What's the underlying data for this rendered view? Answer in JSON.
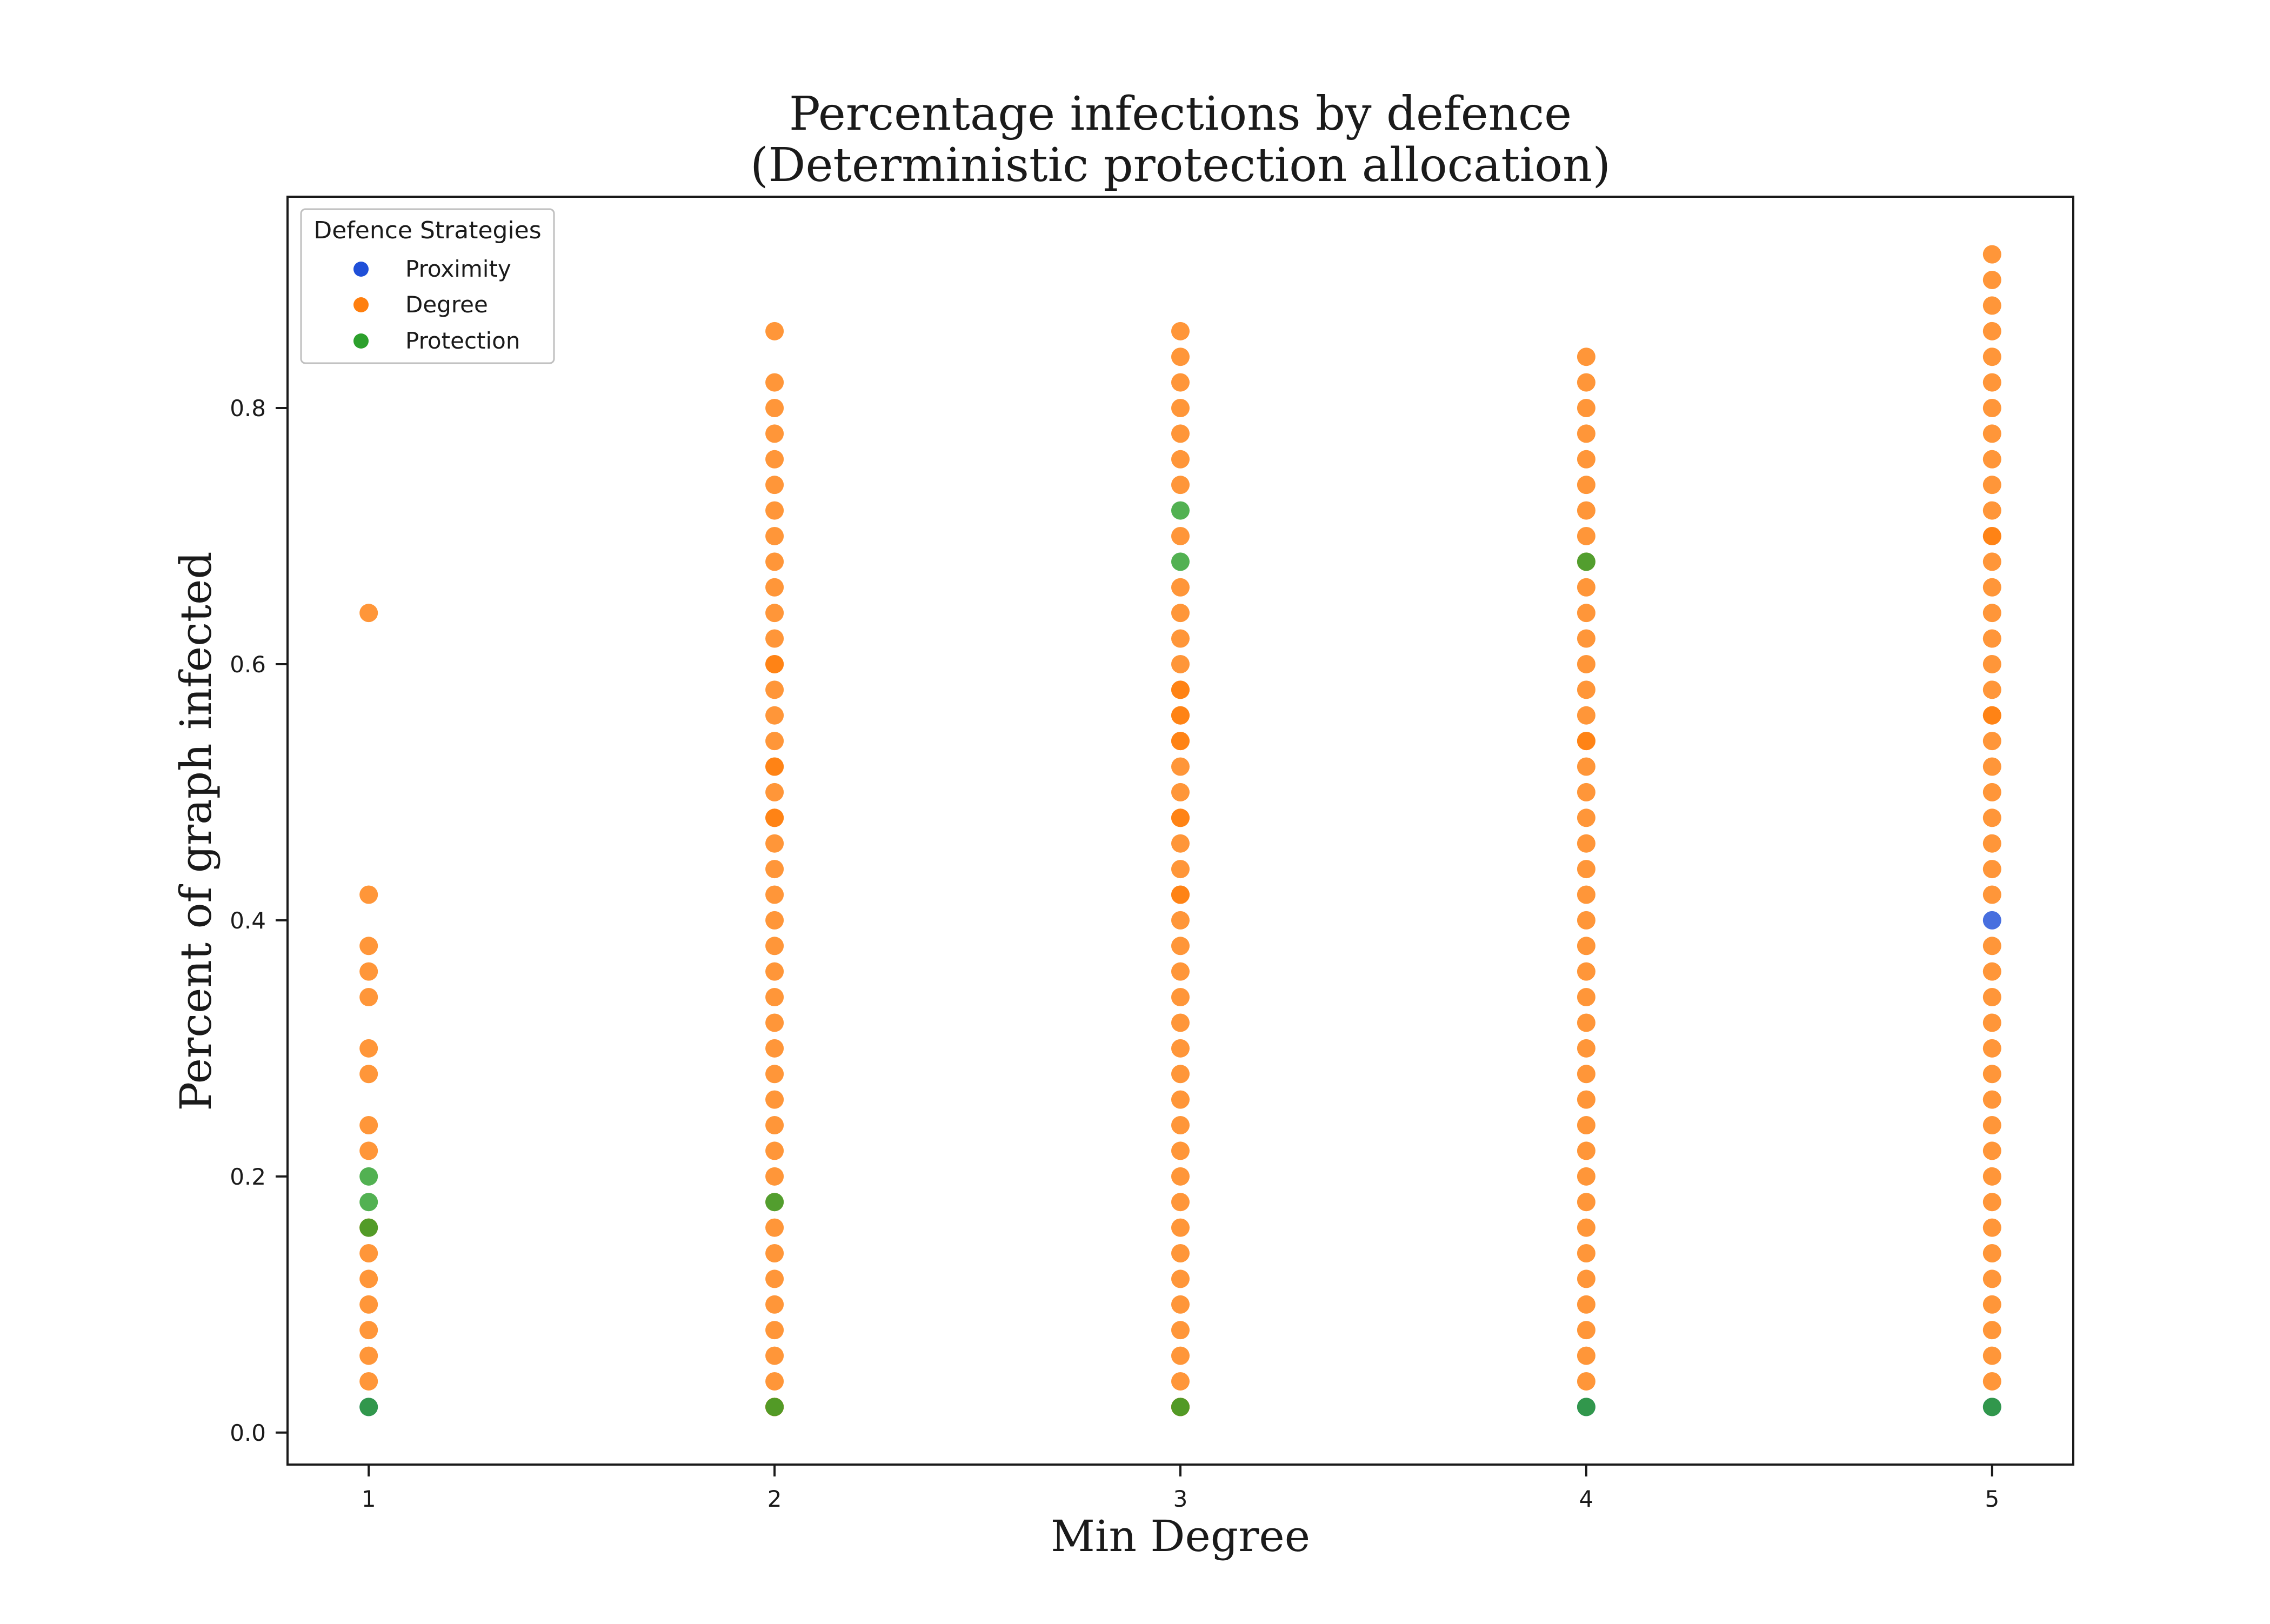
{
  "chart_data": {
    "type": "scatter",
    "title_lines": [
      "Percentage infections by defence",
      "(Deterministic protection allocation)"
    ],
    "xlabel": "Min Degree",
    "ylabel": "Percent of graph infected",
    "xlim": [
      0.8,
      5.2
    ],
    "ylim": [
      -0.025,
      0.965
    ],
    "x_ticks": [
      1,
      2,
      3,
      4,
      5
    ],
    "x_tick_labels": [
      "1",
      "2",
      "3",
      "4",
      "5"
    ],
    "y_ticks": [
      0.0,
      0.2,
      0.4,
      0.6,
      0.8
    ],
    "y_tick_labels": [
      "0.0",
      "0.2",
      "0.4",
      "0.6",
      "0.8"
    ],
    "grid": false,
    "legend": {
      "title": "Defence Strategies",
      "position": "top-left"
    },
    "series": [
      {
        "name": "Proximity",
        "color": "#1f4fd8",
        "x": [
          1,
          2,
          3,
          4,
          5,
          5
        ],
        "y": [
          0.02,
          0.02,
          0.02,
          0.02,
          0.02,
          0.4
        ]
      },
      {
        "name": "Degree",
        "color": "#ff7f0e",
        "x": [
          1,
          1,
          1,
          1,
          1,
          1,
          1,
          1,
          1,
          1,
          1,
          1,
          1,
          1,
          1,
          1,
          1,
          2,
          2,
          2,
          2,
          2,
          2,
          2,
          2,
          2,
          2,
          2,
          2,
          2,
          2,
          2,
          2,
          2,
          2,
          2,
          2,
          2,
          2,
          2,
          2,
          2,
          2,
          2,
          2,
          2,
          2,
          2,
          2,
          2,
          2,
          2,
          2,
          2,
          2,
          2,
          2,
          2,
          2,
          2,
          2,
          2,
          2,
          2,
          2,
          2,
          3,
          3,
          3,
          3,
          3,
          3,
          3,
          3,
          3,
          3,
          3,
          3,
          3,
          3,
          3,
          3,
          3,
          3,
          3,
          3,
          3,
          3,
          3,
          3,
          3,
          3,
          3,
          3,
          3,
          3,
          3,
          3,
          3,
          3,
          3,
          3,
          3,
          3,
          3,
          3,
          3,
          3,
          3,
          3,
          3,
          3,
          3,
          3,
          4,
          4,
          4,
          4,
          4,
          4,
          4,
          4,
          4,
          4,
          4,
          4,
          4,
          4,
          4,
          4,
          4,
          4,
          4,
          4,
          4,
          4,
          4,
          4,
          4,
          4,
          4,
          4,
          4,
          4,
          4,
          4,
          4,
          4,
          4,
          4,
          4,
          4,
          4,
          4,
          4,
          4,
          5,
          5,
          5,
          5,
          5,
          5,
          5,
          5,
          5,
          5,
          5,
          5,
          5,
          5,
          5,
          5,
          5,
          5,
          5,
          5,
          5,
          5,
          5,
          5,
          5,
          5,
          5,
          5,
          5,
          5,
          5,
          5,
          5,
          5,
          5,
          5,
          5,
          5,
          5,
          5,
          5,
          5,
          5,
          5,
          5,
          5
        ],
        "y": [
          0.04,
          0.06,
          0.08,
          0.1,
          0.12,
          0.14,
          0.16,
          0.22,
          0.24,
          0.28,
          0.3,
          0.34,
          0.36,
          0.38,
          0.42,
          0.64,
          0.16,
          0.04,
          0.06,
          0.08,
          0.1,
          0.12,
          0.14,
          0.16,
          0.2,
          0.22,
          0.24,
          0.26,
          0.28,
          0.3,
          0.32,
          0.34,
          0.36,
          0.38,
          0.4,
          0.42,
          0.44,
          0.46,
          0.48,
          0.5,
          0.52,
          0.54,
          0.56,
          0.58,
          0.6,
          0.62,
          0.64,
          0.66,
          0.68,
          0.7,
          0.72,
          0.74,
          0.76,
          0.78,
          0.8,
          0.82,
          0.86,
          0.48,
          0.52,
          0.6,
          0.18,
          0.02,
          0.02,
          0.02,
          0.02,
          0.02,
          0.04,
          0.06,
          0.08,
          0.1,
          0.12,
          0.14,
          0.16,
          0.18,
          0.2,
          0.22,
          0.24,
          0.26,
          0.28,
          0.3,
          0.32,
          0.34,
          0.36,
          0.38,
          0.4,
          0.42,
          0.44,
          0.46,
          0.48,
          0.5,
          0.52,
          0.54,
          0.56,
          0.58,
          0.6,
          0.62,
          0.64,
          0.66,
          0.7,
          0.74,
          0.76,
          0.78,
          0.8,
          0.82,
          0.84,
          0.86,
          0.42,
          0.48,
          0.54,
          0.56,
          0.58,
          0.02,
          0.02,
          0.02,
          0.04,
          0.06,
          0.08,
          0.1,
          0.12,
          0.14,
          0.16,
          0.18,
          0.2,
          0.22,
          0.24,
          0.26,
          0.28,
          0.3,
          0.32,
          0.34,
          0.36,
          0.38,
          0.4,
          0.42,
          0.44,
          0.46,
          0.48,
          0.5,
          0.52,
          0.54,
          0.56,
          0.58,
          0.6,
          0.62,
          0.64,
          0.66,
          0.68,
          0.7,
          0.72,
          0.74,
          0.76,
          0.78,
          0.8,
          0.82,
          0.84,
          0.54,
          0.04,
          0.06,
          0.08,
          0.1,
          0.12,
          0.14,
          0.16,
          0.18,
          0.2,
          0.22,
          0.24,
          0.26,
          0.28,
          0.3,
          0.32,
          0.34,
          0.36,
          0.38,
          0.42,
          0.44,
          0.46,
          0.48,
          0.5,
          0.52,
          0.54,
          0.56,
          0.58,
          0.6,
          0.62,
          0.64,
          0.66,
          0.68,
          0.7,
          0.72,
          0.74,
          0.76,
          0.78,
          0.8,
          0.82,
          0.84,
          0.86,
          0.88,
          0.9,
          0.92,
          0.56,
          0.7
        ]
      },
      {
        "name": "Protection",
        "color": "#2ca02c",
        "x": [
          1,
          1,
          1,
          1,
          2,
          2,
          3,
          3,
          3,
          4,
          4,
          5
        ],
        "y": [
          0.02,
          0.16,
          0.18,
          0.2,
          0.02,
          0.18,
          0.02,
          0.68,
          0.72,
          0.02,
          0.68,
          0.02
        ]
      }
    ]
  }
}
